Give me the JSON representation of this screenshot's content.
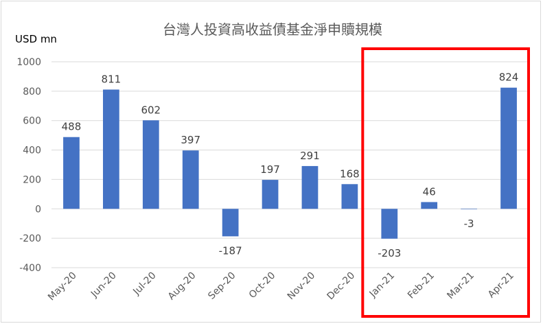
{
  "chart_data": {
    "type": "bar",
    "title": "台灣人投資高收益債基金淨申贖規模",
    "ylabel": "USD mn",
    "xlabel": "",
    "ylim": [
      -400,
      1000
    ],
    "yticks": [
      -400,
      -200,
      0,
      200,
      400,
      600,
      800,
      1000
    ],
    "grid": true,
    "categories": [
      "May-20",
      "Jun-20",
      "Jul-20",
      "Aug-20",
      "Sep-20",
      "Oct-20",
      "Nov-20",
      "Dec-20",
      "Jan-21",
      "Feb-21",
      "Mar-21",
      "Apr-21"
    ],
    "values": [
      488,
      811,
      602,
      397,
      -187,
      197,
      291,
      168,
      -203,
      46,
      -3,
      824
    ],
    "colors": {
      "bar": "#4472c4",
      "grid": "#d9d9d9",
      "highlight": "#ff0000"
    },
    "highlight": {
      "from": "Jan-21",
      "to": "Apr-21"
    }
  }
}
